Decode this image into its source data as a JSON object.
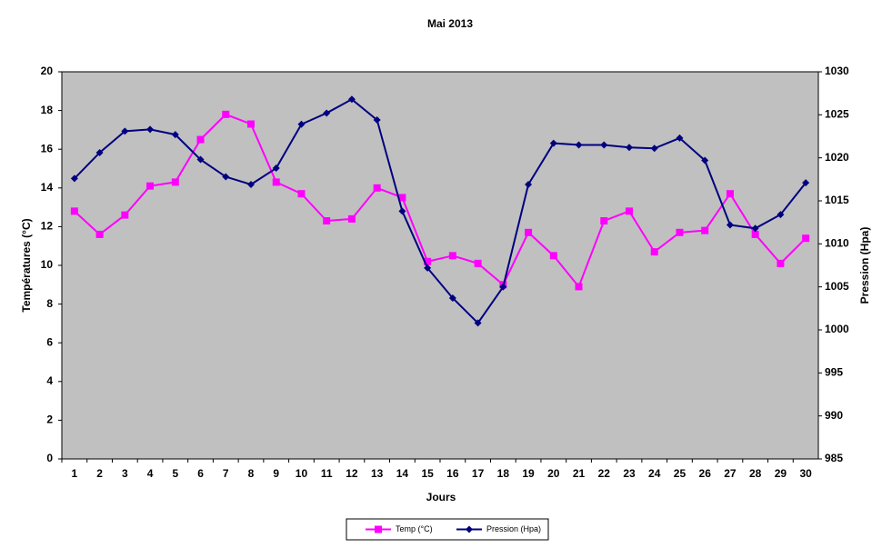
{
  "chart_data": {
    "type": "line",
    "title": "Mai 2013",
    "x_label": "Jours",
    "y_label": "Températures (°C)",
    "y2_label": "Pression (Hpa)",
    "categories": [
      "1",
      "2",
      "3",
      "4",
      "5",
      "6",
      "7",
      "8",
      "9",
      "10",
      "11",
      "12",
      "13",
      "14",
      "15",
      "16",
      "17",
      "18",
      "19",
      "20",
      "21",
      "22",
      "23",
      "24",
      "25",
      "26",
      "27",
      "28",
      "29",
      "30"
    ],
    "series": [
      {
        "name": "Temp (°C)",
        "color": "#ff00ff",
        "marker": "square",
        "values": [
          12.8,
          11.6,
          12.6,
          14.1,
          14.3,
          16.5,
          17.8,
          17.3,
          14.3,
          13.7,
          12.3,
          12.4,
          14.0,
          13.5,
          10.2,
          10.5,
          10.1,
          9.0,
          11.7,
          10.5,
          8.9,
          12.3,
          12.8,
          10.7,
          11.7,
          11.8,
          13.7,
          11.6,
          10.1,
          11.4
        ]
      },
      {
        "name": "Pression (Hpa)",
        "color": "#000080",
        "marker": "diamond",
        "axis": "y2",
        "values": [
          1017.6,
          1020.6,
          1023.1,
          1023.3,
          1022.7,
          1019.8,
          1017.8,
          1016.9,
          1018.8,
          1023.9,
          1025.2,
          1026.8,
          1024.4,
          1013.8,
          1007.2,
          1003.7,
          1000.8,
          1005.0,
          1016.9,
          1021.7,
          1021.5,
          1021.5,
          1021.2,
          1021.1,
          1022.3,
          1019.7,
          1012.2,
          1011.8,
          1013.4,
          1017.1
        ]
      }
    ],
    "ylim": [
      0,
      20
    ],
    "yticks": [
      0,
      2,
      4,
      6,
      8,
      10,
      12,
      14,
      16,
      18,
      20
    ],
    "y2lim": [
      985,
      1030
    ],
    "y2ticks": [
      985,
      990,
      995,
      1000,
      1005,
      1010,
      1015,
      1020,
      1025,
      1030
    ],
    "grid": false,
    "plot_background": "#c0c0c0",
    "legend": "bottom"
  }
}
